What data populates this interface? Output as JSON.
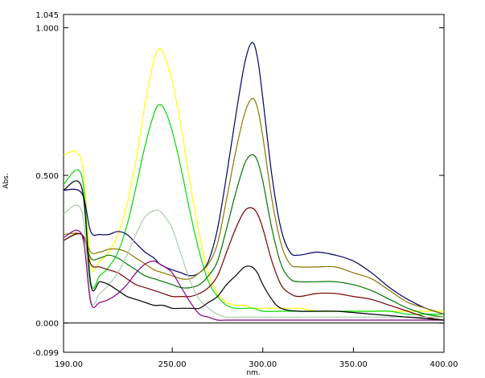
{
  "chart_data": {
    "type": "line",
    "title": "",
    "xlabel": "nm.",
    "ylabel": "Abs.",
    "xlim": [
      190,
      400
    ],
    "ylim": [
      -0.099,
      1.045
    ],
    "grid": false,
    "baseline": 0,
    "x_ticks": [
      "190.00",
      "250.00",
      "300.00",
      "350.00",
      "400.00"
    ],
    "y_ticks": [
      "1.045",
      "1.000",
      "0.500",
      "0.000",
      "-0.099"
    ],
    "series": [
      {
        "color": "#ffff00",
        "x": [
          190,
          200,
          205,
          210,
          215,
          220,
          225,
          230,
          235,
          240,
          243,
          246,
          250,
          255,
          260,
          265,
          270,
          275,
          280,
          285,
          290,
          295,
          300,
          310,
          320,
          330,
          340,
          350,
          360,
          370,
          380,
          390,
          400
        ],
        "y": [
          0.57,
          0.55,
          0.2,
          0.21,
          0.24,
          0.3,
          0.4,
          0.55,
          0.74,
          0.89,
          0.93,
          0.9,
          0.82,
          0.66,
          0.47,
          0.3,
          0.17,
          0.1,
          0.07,
          0.06,
          0.06,
          0.05,
          0.05,
          0.05,
          0.05,
          0.04,
          0.04,
          0.04,
          0.04,
          0.04,
          0.04,
          0.04,
          0.04
        ]
      },
      {
        "color": "#00dd00",
        "x": [
          190,
          200,
          205,
          210,
          215,
          220,
          225,
          230,
          235,
          240,
          243,
          246,
          250,
          255,
          260,
          265,
          270,
          275,
          280,
          285,
          290,
          295,
          300,
          310,
          320,
          330,
          340,
          350,
          360,
          370,
          380,
          390,
          400
        ],
        "y": [
          0.47,
          0.5,
          0.14,
          0.16,
          0.19,
          0.24,
          0.33,
          0.46,
          0.6,
          0.71,
          0.74,
          0.72,
          0.65,
          0.52,
          0.37,
          0.24,
          0.14,
          0.09,
          0.06,
          0.05,
          0.05,
          0.05,
          0.04,
          0.04,
          0.04,
          0.04,
          0.04,
          0.04,
          0.04,
          0.04,
          0.03,
          0.03,
          0.03
        ]
      },
      {
        "color": "#000066",
        "x": [
          190,
          200,
          205,
          210,
          215,
          220,
          225,
          230,
          235,
          240,
          243,
          246,
          250,
          255,
          260,
          265,
          270,
          275,
          280,
          285,
          290,
          294,
          297,
          300,
          305,
          310,
          315,
          320,
          330,
          340,
          350,
          360,
          370,
          380,
          390,
          400
        ],
        "y": [
          0.45,
          0.44,
          0.31,
          0.3,
          0.3,
          0.31,
          0.3,
          0.27,
          0.24,
          0.22,
          0.2,
          0.19,
          0.18,
          0.17,
          0.16,
          0.17,
          0.21,
          0.32,
          0.5,
          0.7,
          0.88,
          0.95,
          0.9,
          0.76,
          0.5,
          0.32,
          0.24,
          0.23,
          0.24,
          0.23,
          0.21,
          0.17,
          0.12,
          0.08,
          0.05,
          0.03
        ]
      },
      {
        "color": "#887700",
        "x": [
          190,
          200,
          205,
          210,
          215,
          220,
          225,
          230,
          235,
          240,
          245,
          250,
          255,
          260,
          265,
          270,
          275,
          280,
          285,
          290,
          294,
          297,
          300,
          305,
          310,
          315,
          320,
          330,
          340,
          350,
          360,
          370,
          380,
          390,
          400
        ],
        "y": [
          0.3,
          0.3,
          0.24,
          0.24,
          0.25,
          0.25,
          0.24,
          0.22,
          0.2,
          0.18,
          0.17,
          0.16,
          0.15,
          0.15,
          0.17,
          0.2,
          0.27,
          0.42,
          0.58,
          0.71,
          0.76,
          0.73,
          0.63,
          0.42,
          0.27,
          0.2,
          0.19,
          0.19,
          0.19,
          0.17,
          0.15,
          0.11,
          0.07,
          0.05,
          0.03
        ]
      },
      {
        "color": "#007700",
        "x": [
          190,
          200,
          205,
          210,
          215,
          220,
          225,
          230,
          235,
          240,
          245,
          250,
          255,
          260,
          265,
          270,
          275,
          280,
          285,
          290,
          294,
          297,
          300,
          305,
          310,
          315,
          320,
          330,
          340,
          350,
          360,
          370,
          380,
          390,
          400
        ],
        "y": [
          0.28,
          0.3,
          0.22,
          0.22,
          0.23,
          0.22,
          0.2,
          0.18,
          0.16,
          0.15,
          0.14,
          0.13,
          0.12,
          0.12,
          0.13,
          0.16,
          0.21,
          0.32,
          0.44,
          0.54,
          0.57,
          0.55,
          0.48,
          0.32,
          0.2,
          0.15,
          0.14,
          0.14,
          0.14,
          0.13,
          0.11,
          0.08,
          0.05,
          0.03,
          0.02
        ]
      },
      {
        "color": "#770000",
        "x": [
          190,
          200,
          205,
          210,
          215,
          220,
          225,
          230,
          235,
          240,
          245,
          250,
          255,
          260,
          265,
          270,
          275,
          280,
          285,
          290,
          294,
          297,
          300,
          305,
          310,
          315,
          320,
          330,
          340,
          350,
          360,
          370,
          380,
          390,
          400
        ],
        "y": [
          0.28,
          0.3,
          0.2,
          0.19,
          0.18,
          0.17,
          0.15,
          0.13,
          0.12,
          0.11,
          0.1,
          0.09,
          0.09,
          0.09,
          0.1,
          0.12,
          0.16,
          0.24,
          0.32,
          0.38,
          0.39,
          0.37,
          0.32,
          0.21,
          0.13,
          0.1,
          0.09,
          0.1,
          0.1,
          0.09,
          0.08,
          0.06,
          0.04,
          0.02,
          0.01
        ]
      },
      {
        "color": "#aaccaa",
        "x": [
          190,
          200,
          205,
          210,
          215,
          220,
          225,
          230,
          235,
          240,
          243,
          246,
          250,
          255,
          260,
          265,
          270,
          275,
          280,
          290,
          300,
          320,
          340,
          360,
          380,
          400
        ],
        "y": [
          0.37,
          0.38,
          0.08,
          0.1,
          0.13,
          0.17,
          0.23,
          0.3,
          0.36,
          0.38,
          0.38,
          0.36,
          0.32,
          0.23,
          0.14,
          0.08,
          0.05,
          0.03,
          0.02,
          0.02,
          0.02,
          0.02,
          0.02,
          0.02,
          0.02,
          0.02
        ]
      },
      {
        "color": "#880088",
        "x": [
          190,
          200,
          205,
          210,
          215,
          220,
          225,
          230,
          235,
          240,
          243,
          246,
          250,
          255,
          260,
          265,
          270,
          275,
          280,
          290,
          300,
          320,
          340,
          360,
          380,
          400
        ],
        "y": [
          0.29,
          0.3,
          0.07,
          0.07,
          0.08,
          0.1,
          0.13,
          0.17,
          0.2,
          0.21,
          0.2,
          0.19,
          0.17,
          0.12,
          0.07,
          0.03,
          0.02,
          0.01,
          0.01,
          0.01,
          0.01,
          0.01,
          0.01,
          0.01,
          0.01,
          0.01
        ]
      },
      {
        "color": "#000000",
        "x": [
          190,
          200,
          205,
          210,
          215,
          220,
          225,
          230,
          235,
          240,
          245,
          250,
          255,
          260,
          265,
          270,
          275,
          280,
          285,
          290,
          294,
          297,
          300,
          305,
          310,
          320,
          340,
          360,
          380,
          400
        ],
        "y": [
          0.45,
          0.46,
          0.13,
          0.14,
          0.13,
          0.11,
          0.09,
          0.08,
          0.07,
          0.06,
          0.06,
          0.05,
          0.05,
          0.05,
          0.05,
          0.07,
          0.09,
          0.13,
          0.16,
          0.19,
          0.19,
          0.17,
          0.13,
          0.08,
          0.05,
          0.04,
          0.04,
          0.03,
          0.02,
          0.01
        ]
      }
    ]
  }
}
